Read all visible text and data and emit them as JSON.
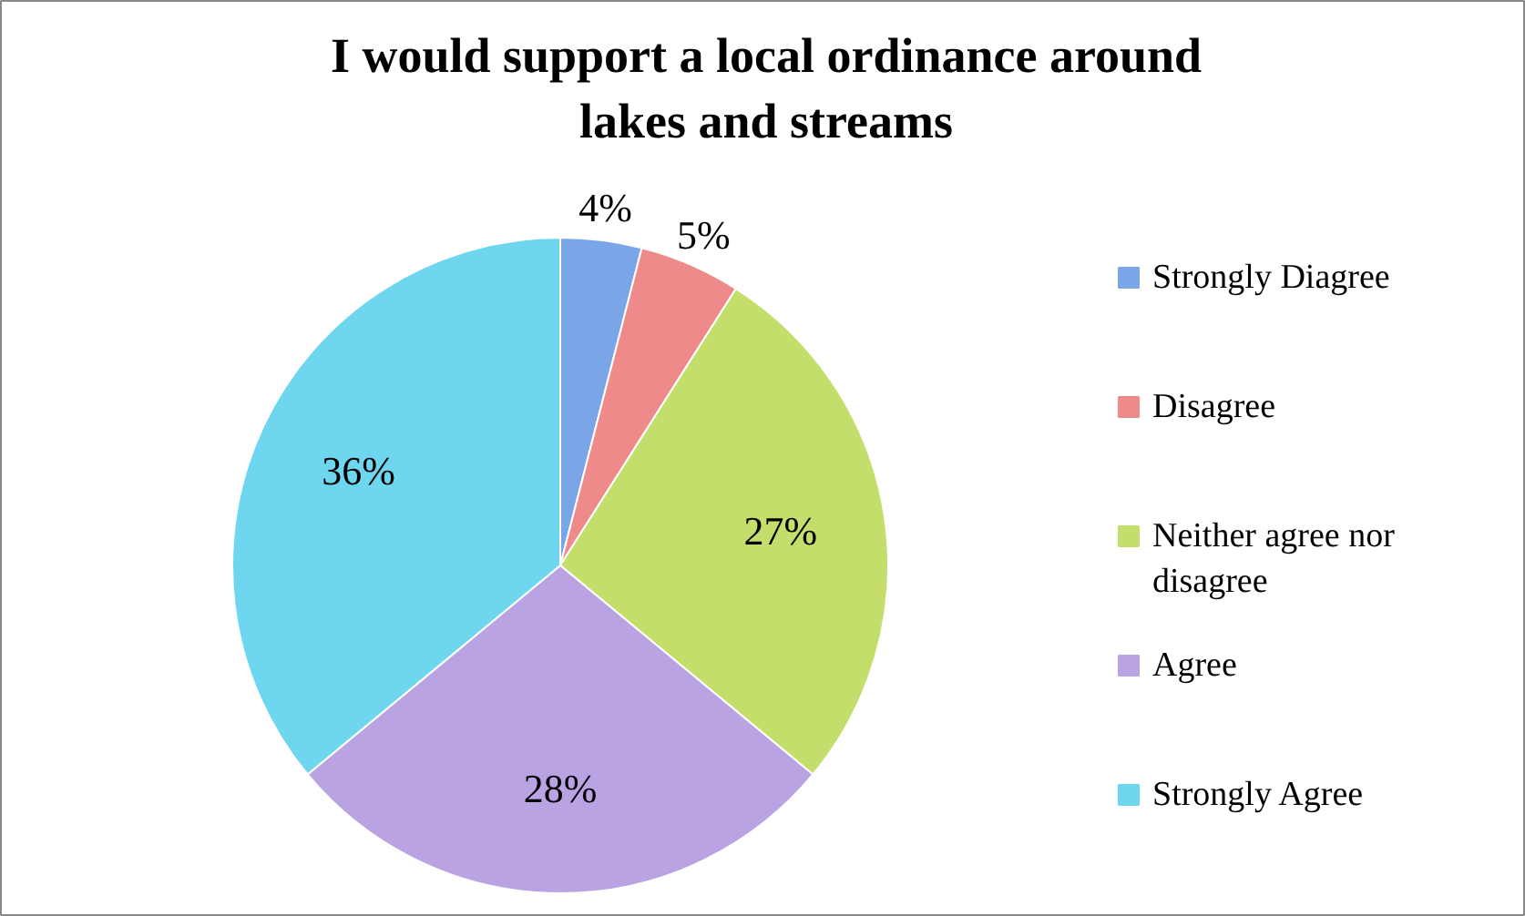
{
  "chart_data": {
    "type": "pie",
    "title": "I would support a local ordinance around lakes and streams",
    "categories": [
      "Strongly Diagree",
      "Disagree",
      "Neither agree nor disagree",
      "Agree",
      "Strongly Agree"
    ],
    "values": [
      4,
      5,
      27,
      28,
      36
    ],
    "colors": [
      "#7aa6e8",
      "#ef8a8a",
      "#c3de6a",
      "#b9a3e3",
      "#6fd6ef"
    ],
    "value_labels": [
      "4%",
      "5%",
      "27%",
      "28%",
      "36%"
    ],
    "legend": "right"
  }
}
